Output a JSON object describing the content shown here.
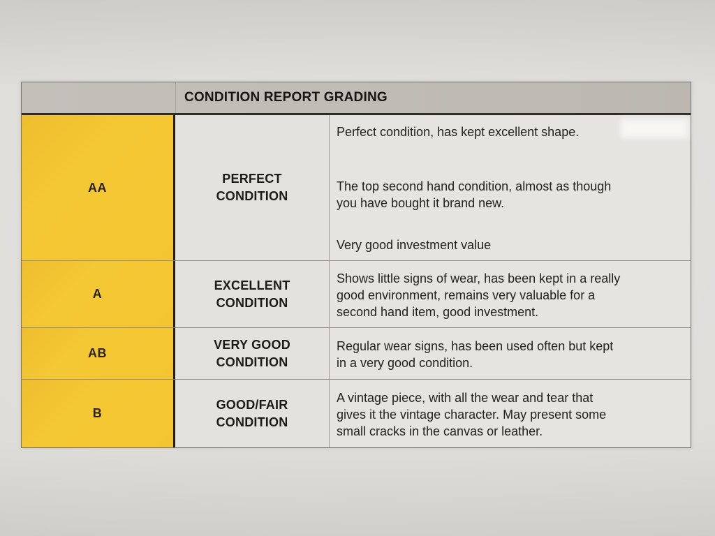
{
  "table": {
    "header_title": "CONDITION REPORT GRADING",
    "rows": [
      {
        "grade": "AA",
        "condition": "PERFECT CONDITION",
        "description_paragraphs": [
          "Perfect condition, has kept excellent shape.",
          "The top second hand condition, almost as though\nyou have bought it brand new.",
          "Very good investment value"
        ]
      },
      {
        "grade": "A",
        "condition": "EXCELLENT CONDITION",
        "description_paragraphs": [
          "Shows little signs of wear, has been kept in a really\ngood environment, remains very valuable for a\nsecond hand item, good investment."
        ]
      },
      {
        "grade": "AB",
        "condition": "VERY GOOD CONDITION",
        "description_paragraphs": [
          "Regular wear signs, has been used often but kept\nin a very good condition."
        ]
      },
      {
        "grade": "B",
        "condition": "GOOD/FAIR CONDITION",
        "description_paragraphs": [
          "A vintage piece, with all the wear and tear that\ngives it the vintage character. May present some\nsmall cracks in the canvas or leather."
        ]
      }
    ]
  },
  "colors": {
    "grade_column_bg": "#f4c734",
    "header_bg": "#c3c0ba",
    "cell_bg": "#e5e3e0",
    "paper_bg": "#dedcd9",
    "text": "#17150f"
  }
}
